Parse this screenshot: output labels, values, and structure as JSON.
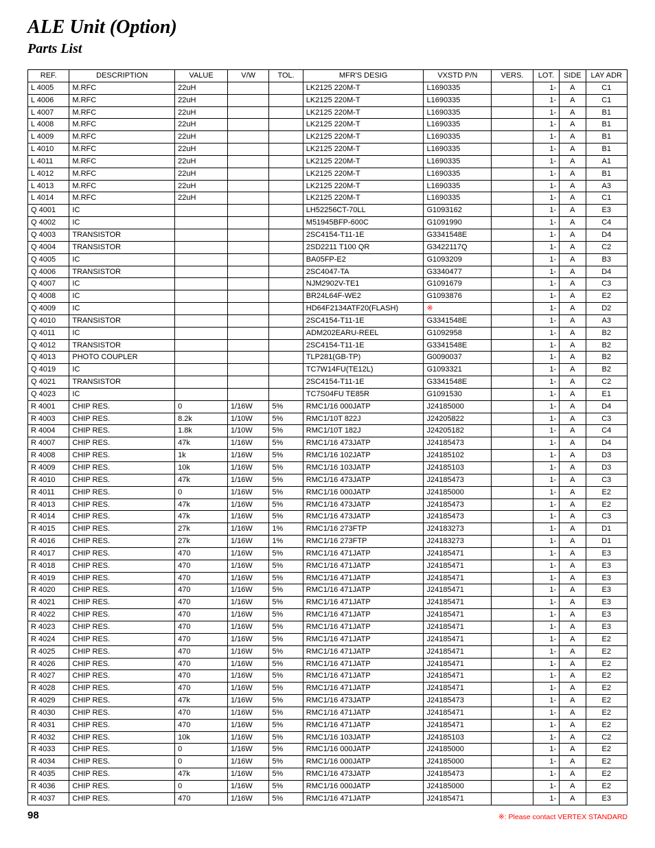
{
  "title": "ALE Unit (Option)",
  "subtitle": "Parts List",
  "page_number": "98",
  "footnote_symbol": "※",
  "footnote_text": ": Please contact VERTEX STANDARD",
  "colors": {
    "text": "#000000",
    "background": "#ffffff",
    "border": "#000000",
    "accent_red": "#ff0000"
  },
  "table": {
    "columns": [
      "REF.",
      "DESCRIPTION",
      "VALUE",
      "V/W",
      "TOL.",
      "MFR'S DESIG",
      "VXSTD P/N",
      "VERS.",
      "LOT.",
      "SIDE",
      "LAY ADR"
    ],
    "rows": [
      {
        "ref": "L 4005",
        "desc": "M.RFC",
        "val": "22uH",
        "vw": "",
        "tol": "",
        "mfr": "LK2125 220M-T",
        "vx": "L1690335",
        "vers": "",
        "lot": "1-",
        "side": "A",
        "lay": "C1"
      },
      {
        "ref": "L 4006",
        "desc": "M.RFC",
        "val": "22uH",
        "vw": "",
        "tol": "",
        "mfr": "LK2125 220M-T",
        "vx": "L1690335",
        "vers": "",
        "lot": "1-",
        "side": "A",
        "lay": "C1"
      },
      {
        "ref": "L 4007",
        "desc": "M.RFC",
        "val": "22uH",
        "vw": "",
        "tol": "",
        "mfr": "LK2125 220M-T",
        "vx": "L1690335",
        "vers": "",
        "lot": "1-",
        "side": "A",
        "lay": "B1"
      },
      {
        "ref": "L 4008",
        "desc": "M.RFC",
        "val": "22uH",
        "vw": "",
        "tol": "",
        "mfr": "LK2125 220M-T",
        "vx": "L1690335",
        "vers": "",
        "lot": "1-",
        "side": "A",
        "lay": "B1"
      },
      {
        "ref": "L 4009",
        "desc": "M.RFC",
        "val": "22uH",
        "vw": "",
        "tol": "",
        "mfr": "LK2125 220M-T",
        "vx": "L1690335",
        "vers": "",
        "lot": "1-",
        "side": "A",
        "lay": "B1"
      },
      {
        "ref": "L 4010",
        "desc": "M.RFC",
        "val": "22uH",
        "vw": "",
        "tol": "",
        "mfr": "LK2125 220M-T",
        "vx": "L1690335",
        "vers": "",
        "lot": "1-",
        "side": "A",
        "lay": "B1"
      },
      {
        "ref": "L 4011",
        "desc": "M.RFC",
        "val": "22uH",
        "vw": "",
        "tol": "",
        "mfr": "LK2125 220M-T",
        "vx": "L1690335",
        "vers": "",
        "lot": "1-",
        "side": "A",
        "lay": "A1"
      },
      {
        "ref": "L 4012",
        "desc": "M.RFC",
        "val": "22uH",
        "vw": "",
        "tol": "",
        "mfr": "LK2125 220M-T",
        "vx": "L1690335",
        "vers": "",
        "lot": "1-",
        "side": "A",
        "lay": "B1"
      },
      {
        "ref": "L 4013",
        "desc": "M.RFC",
        "val": "22uH",
        "vw": "",
        "tol": "",
        "mfr": "LK2125 220M-T",
        "vx": "L1690335",
        "vers": "",
        "lot": "1-",
        "side": "A",
        "lay": "A3"
      },
      {
        "ref": "L 4014",
        "desc": "M.RFC",
        "val": "22uH",
        "vw": "",
        "tol": "",
        "mfr": "LK2125 220M-T",
        "vx": "L1690335",
        "vers": "",
        "lot": "1-",
        "side": "A",
        "lay": "C1"
      },
      {
        "ref": "Q 4001",
        "desc": "IC",
        "val": "",
        "vw": "",
        "tol": "",
        "mfr": "LH52256CT-70LL",
        "vx": "G1093162",
        "vers": "",
        "lot": "1-",
        "side": "A",
        "lay": "E3"
      },
      {
        "ref": "Q 4002",
        "desc": "IC",
        "val": "",
        "vw": "",
        "tol": "",
        "mfr": "M51945BFP-600C",
        "vx": "G1091990",
        "vers": "",
        "lot": "1-",
        "side": "A",
        "lay": "C4"
      },
      {
        "ref": "Q 4003",
        "desc": "TRANSISTOR",
        "val": "",
        "vw": "",
        "tol": "",
        "mfr": "2SC4154-T11-1E",
        "vx": "G3341548E",
        "vers": "",
        "lot": "1-",
        "side": "A",
        "lay": "D4"
      },
      {
        "ref": "Q 4004",
        "desc": "TRANSISTOR",
        "val": "",
        "vw": "",
        "tol": "",
        "mfr": "2SD2211 T100 QR",
        "vx": "G3422117Q",
        "vers": "",
        "lot": "1-",
        "side": "A",
        "lay": "C2"
      },
      {
        "ref": "Q 4005",
        "desc": "IC",
        "val": "",
        "vw": "",
        "tol": "",
        "mfr": "BA05FP-E2",
        "vx": "G1093209",
        "vers": "",
        "lot": "1-",
        "side": "A",
        "lay": "B3"
      },
      {
        "ref": "Q 4006",
        "desc": "TRANSISTOR",
        "val": "",
        "vw": "",
        "tol": "",
        "mfr": "2SC4047-TA",
        "vx": "G3340477",
        "vers": "",
        "lot": "1-",
        "side": "A",
        "lay": "D4"
      },
      {
        "ref": "Q 4007",
        "desc": "IC",
        "val": "",
        "vw": "",
        "tol": "",
        "mfr": "NJM2902V-TE1",
        "vx": "G1091679",
        "vers": "",
        "lot": "1-",
        "side": "A",
        "lay": "C3"
      },
      {
        "ref": "Q 4008",
        "desc": "IC",
        "val": "",
        "vw": "",
        "tol": "",
        "mfr": "BR24L64F-WE2",
        "vx": "G1093876",
        "vers": "",
        "lot": "1-",
        "side": "A",
        "lay": "E2"
      },
      {
        "ref": "Q 4009",
        "desc": "IC",
        "val": "",
        "vw": "",
        "tol": "",
        "mfr": "HD64F2134ATF20(FLASH)",
        "vx": "※",
        "vx_red": true,
        "vers": "",
        "lot": "1-",
        "side": "A",
        "lay": "D2"
      },
      {
        "ref": "Q 4010",
        "desc": "TRANSISTOR",
        "val": "",
        "vw": "",
        "tol": "",
        "mfr": "2SC4154-T11-1E",
        "vx": "G3341548E",
        "vers": "",
        "lot": "1-",
        "side": "A",
        "lay": "A3"
      },
      {
        "ref": "Q 4011",
        "desc": "IC",
        "val": "",
        "vw": "",
        "tol": "",
        "mfr": "ADM202EARU-REEL",
        "vx": "G1092958",
        "vers": "",
        "lot": "1-",
        "side": "A",
        "lay": "B2"
      },
      {
        "ref": "Q 4012",
        "desc": "TRANSISTOR",
        "val": "",
        "vw": "",
        "tol": "",
        "mfr": "2SC4154-T11-1E",
        "vx": "G3341548E",
        "vers": "",
        "lot": "1-",
        "side": "A",
        "lay": "B2"
      },
      {
        "ref": "Q 4013",
        "desc": "PHOTO COUPLER",
        "val": "",
        "vw": "",
        "tol": "",
        "mfr": "TLP281(GB-TP)",
        "vx": "G0090037",
        "vers": "",
        "lot": "1-",
        "side": "A",
        "lay": "B2"
      },
      {
        "ref": "Q 4019",
        "desc": "IC",
        "val": "",
        "vw": "",
        "tol": "",
        "mfr": "TC7W14FU(TE12L)",
        "vx": "G1093321",
        "vers": "",
        "lot": "1-",
        "side": "A",
        "lay": "B2"
      },
      {
        "ref": "Q 4021",
        "desc": "TRANSISTOR",
        "val": "",
        "vw": "",
        "tol": "",
        "mfr": "2SC4154-T11-1E",
        "vx": "G3341548E",
        "vers": "",
        "lot": "1-",
        "side": "A",
        "lay": "C2"
      },
      {
        "ref": "Q 4023",
        "desc": "IC",
        "val": "",
        "vw": "",
        "tol": "",
        "mfr": "TC7S04FU TE85R",
        "vx": "G1091530",
        "vers": "",
        "lot": "1-",
        "side": "A",
        "lay": "E1"
      },
      {
        "ref": "R 4001",
        "desc": "CHIP RES.",
        "val": "0",
        "vw": "1/16W",
        "tol": "5%",
        "mfr": "RMC1/16 000JATP",
        "vx": "J24185000",
        "vers": "",
        "lot": "1-",
        "side": "A",
        "lay": "D4"
      },
      {
        "ref": "R 4003",
        "desc": "CHIP RES.",
        "val": "8.2k",
        "vw": "1/10W",
        "tol": "5%",
        "mfr": "RMC1/10T 822J",
        "vx": "J24205822",
        "vers": "",
        "lot": "1-",
        "side": "A",
        "lay": "C3"
      },
      {
        "ref": "R 4004",
        "desc": "CHIP RES.",
        "val": "1.8k",
        "vw": "1/10W",
        "tol": "5%",
        "mfr": "RMC1/10T 182J",
        "vx": "J24205182",
        "vers": "",
        "lot": "1-",
        "side": "A",
        "lay": "C4"
      },
      {
        "ref": "R 4007",
        "desc": "CHIP RES.",
        "val": "47k",
        "vw": "1/16W",
        "tol": "5%",
        "mfr": "RMC1/16 473JATP",
        "vx": "J24185473",
        "vers": "",
        "lot": "1-",
        "side": "A",
        "lay": "D4"
      },
      {
        "ref": "R 4008",
        "desc": "CHIP RES.",
        "val": "1k",
        "vw": "1/16W",
        "tol": "5%",
        "mfr": "RMC1/16 102JATP",
        "vx": "J24185102",
        "vers": "",
        "lot": "1-",
        "side": "A",
        "lay": "D3"
      },
      {
        "ref": "R 4009",
        "desc": "CHIP RES.",
        "val": "10k",
        "vw": "1/16W",
        "tol": "5%",
        "mfr": "RMC1/16 103JATP",
        "vx": "J24185103",
        "vers": "",
        "lot": "1-",
        "side": "A",
        "lay": "D3"
      },
      {
        "ref": "R 4010",
        "desc": "CHIP RES.",
        "val": "47k",
        "vw": "1/16W",
        "tol": "5%",
        "mfr": "RMC1/16 473JATP",
        "vx": "J24185473",
        "vers": "",
        "lot": "1-",
        "side": "A",
        "lay": "C3"
      },
      {
        "ref": "R 4011",
        "desc": "CHIP RES.",
        "val": "0",
        "vw": "1/16W",
        "tol": "5%",
        "mfr": "RMC1/16 000JATP",
        "vx": "J24185000",
        "vers": "",
        "lot": "1-",
        "side": "A",
        "lay": "E2"
      },
      {
        "ref": "R 4013",
        "desc": "CHIP RES.",
        "val": "47k",
        "vw": "1/16W",
        "tol": "5%",
        "mfr": "RMC1/16 473JATP",
        "vx": "J24185473",
        "vers": "",
        "lot": "1-",
        "side": "A",
        "lay": "E2"
      },
      {
        "ref": "R 4014",
        "desc": "CHIP RES.",
        "val": "47k",
        "vw": "1/16W",
        "tol": "5%",
        "mfr": "RMC1/16 473JATP",
        "vx": "J24185473",
        "vers": "",
        "lot": "1-",
        "side": "A",
        "lay": "C3"
      },
      {
        "ref": "R 4015",
        "desc": "CHIP RES.",
        "val": "27k",
        "vw": "1/16W",
        "tol": "1%",
        "mfr": "RMC1/16 273FTP",
        "vx": "J24183273",
        "vers": "",
        "lot": "1-",
        "side": "A",
        "lay": "D1"
      },
      {
        "ref": "R 4016",
        "desc": "CHIP RES.",
        "val": "27k",
        "vw": "1/16W",
        "tol": "1%",
        "mfr": "RMC1/16 273FTP",
        "vx": "J24183273",
        "vers": "",
        "lot": "1-",
        "side": "A",
        "lay": "D1"
      },
      {
        "ref": "R 4017",
        "desc": "CHIP RES.",
        "val": "470",
        "vw": "1/16W",
        "tol": "5%",
        "mfr": "RMC1/16 471JATP",
        "vx": "J24185471",
        "vers": "",
        "lot": "1-",
        "side": "A",
        "lay": "E3"
      },
      {
        "ref": "R 4018",
        "desc": "CHIP RES.",
        "val": "470",
        "vw": "1/16W",
        "tol": "5%",
        "mfr": "RMC1/16 471JATP",
        "vx": "J24185471",
        "vers": "",
        "lot": "1-",
        "side": "A",
        "lay": "E3"
      },
      {
        "ref": "R 4019",
        "desc": "CHIP RES.",
        "val": "470",
        "vw": "1/16W",
        "tol": "5%",
        "mfr": "RMC1/16 471JATP",
        "vx": "J24185471",
        "vers": "",
        "lot": "1-",
        "side": "A",
        "lay": "E3"
      },
      {
        "ref": "R 4020",
        "desc": "CHIP RES.",
        "val": "470",
        "vw": "1/16W",
        "tol": "5%",
        "mfr": "RMC1/16 471JATP",
        "vx": "J24185471",
        "vers": "",
        "lot": "1-",
        "side": "A",
        "lay": "E3"
      },
      {
        "ref": "R 4021",
        "desc": "CHIP RES.",
        "val": "470",
        "vw": "1/16W",
        "tol": "5%",
        "mfr": "RMC1/16 471JATP",
        "vx": "J24185471",
        "vers": "",
        "lot": "1-",
        "side": "A",
        "lay": "E3"
      },
      {
        "ref": "R 4022",
        "desc": "CHIP RES.",
        "val": "470",
        "vw": "1/16W",
        "tol": "5%",
        "mfr": "RMC1/16 471JATP",
        "vx": "J24185471",
        "vers": "",
        "lot": "1-",
        "side": "A",
        "lay": "E3"
      },
      {
        "ref": "R 4023",
        "desc": "CHIP RES.",
        "val": "470",
        "vw": "1/16W",
        "tol": "5%",
        "mfr": "RMC1/16 471JATP",
        "vx": "J24185471",
        "vers": "",
        "lot": "1-",
        "side": "A",
        "lay": "E3"
      },
      {
        "ref": "R 4024",
        "desc": "CHIP RES.",
        "val": "470",
        "vw": "1/16W",
        "tol": "5%",
        "mfr": "RMC1/16 471JATP",
        "vx": "J24185471",
        "vers": "",
        "lot": "1-",
        "side": "A",
        "lay": "E2"
      },
      {
        "ref": "R 4025",
        "desc": "CHIP RES.",
        "val": "470",
        "vw": "1/16W",
        "tol": "5%",
        "mfr": "RMC1/16 471JATP",
        "vx": "J24185471",
        "vers": "",
        "lot": "1-",
        "side": "A",
        "lay": "E2"
      },
      {
        "ref": "R 4026",
        "desc": "CHIP RES.",
        "val": "470",
        "vw": "1/16W",
        "tol": "5%",
        "mfr": "RMC1/16 471JATP",
        "vx": "J24185471",
        "vers": "",
        "lot": "1-",
        "side": "A",
        "lay": "E2"
      },
      {
        "ref": "R 4027",
        "desc": "CHIP RES.",
        "val": "470",
        "vw": "1/16W",
        "tol": "5%",
        "mfr": "RMC1/16 471JATP",
        "vx": "J24185471",
        "vers": "",
        "lot": "1-",
        "side": "A",
        "lay": "E2"
      },
      {
        "ref": "R 4028",
        "desc": "CHIP RES.",
        "val": "470",
        "vw": "1/16W",
        "tol": "5%",
        "mfr": "RMC1/16 471JATP",
        "vx": "J24185471",
        "vers": "",
        "lot": "1-",
        "side": "A",
        "lay": "E2"
      },
      {
        "ref": "R 4029",
        "desc": "CHIP RES.",
        "val": "47k",
        "vw": "1/16W",
        "tol": "5%",
        "mfr": "RMC1/16 473JATP",
        "vx": "J24185473",
        "vers": "",
        "lot": "1-",
        "side": "A",
        "lay": "E2"
      },
      {
        "ref": "R 4030",
        "desc": "CHIP RES.",
        "val": "470",
        "vw": "1/16W",
        "tol": "5%",
        "mfr": "RMC1/16 471JATP",
        "vx": "J24185471",
        "vers": "",
        "lot": "1-",
        "side": "A",
        "lay": "E2"
      },
      {
        "ref": "R 4031",
        "desc": "CHIP RES.",
        "val": "470",
        "vw": "1/16W",
        "tol": "5%",
        "mfr": "RMC1/16 471JATP",
        "vx": "J24185471",
        "vers": "",
        "lot": "1-",
        "side": "A",
        "lay": "E2"
      },
      {
        "ref": "R 4032",
        "desc": "CHIP RES.",
        "val": "10k",
        "vw": "1/16W",
        "tol": "5%",
        "mfr": "RMC1/16 103JATP",
        "vx": "J24185103",
        "vers": "",
        "lot": "1-",
        "side": "A",
        "lay": "C2"
      },
      {
        "ref": "R 4033",
        "desc": "CHIP RES.",
        "val": "0",
        "vw": "1/16W",
        "tol": "5%",
        "mfr": "RMC1/16 000JATP",
        "vx": "J24185000",
        "vers": "",
        "lot": "1-",
        "side": "A",
        "lay": "E2"
      },
      {
        "ref": "R 4034",
        "desc": "CHIP RES.",
        "val": "0",
        "vw": "1/16W",
        "tol": "5%",
        "mfr": "RMC1/16 000JATP",
        "vx": "J24185000",
        "vers": "",
        "lot": "1-",
        "side": "A",
        "lay": "E2"
      },
      {
        "ref": "R 4035",
        "desc": "CHIP RES.",
        "val": "47k",
        "vw": "1/16W",
        "tol": "5%",
        "mfr": "RMC1/16 473JATP",
        "vx": "J24185473",
        "vers": "",
        "lot": "1-",
        "side": "A",
        "lay": "E2"
      },
      {
        "ref": "R 4036",
        "desc": "CHIP RES.",
        "val": "0",
        "vw": "1/16W",
        "tol": "5%",
        "mfr": "RMC1/16 000JATP",
        "vx": "J24185000",
        "vers": "",
        "lot": "1-",
        "side": "A",
        "lay": "E2"
      },
      {
        "ref": "R 4037",
        "desc": "CHIP RES.",
        "val": "470",
        "vw": "1/16W",
        "tol": "5%",
        "mfr": "RMC1/16 471JATP",
        "vx": "J24185471",
        "vers": "",
        "lot": "1-",
        "side": "A",
        "lay": "E3"
      }
    ]
  }
}
